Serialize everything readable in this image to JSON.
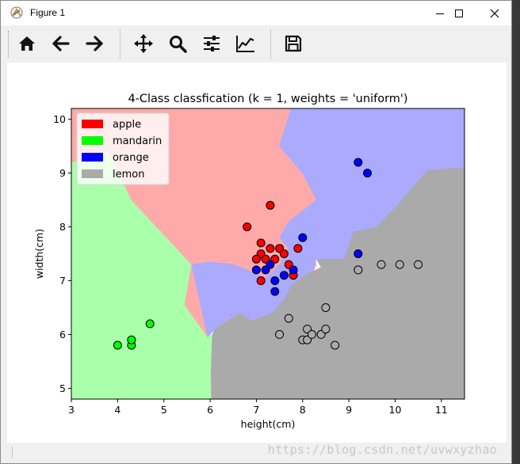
{
  "window": {
    "title": "Figure 1",
    "controls": {
      "minimize": "minimize",
      "maximize": "maximize",
      "close": "close"
    }
  },
  "toolbar": {
    "items": [
      {
        "name": "home-icon"
      },
      {
        "name": "back-arrow-icon"
      },
      {
        "name": "forward-arrow-icon"
      },
      {
        "name": "pan-icon"
      },
      {
        "name": "zoom-icon"
      },
      {
        "name": "configure-subplots-icon"
      },
      {
        "name": "edit-axes-icon"
      },
      {
        "name": "save-icon"
      }
    ]
  },
  "status": {
    "watermark": "https://blog.csdn.net/uvwxyzhao"
  },
  "chart_data": {
    "type": "scatter",
    "title": "4-Class classfication (k = 1, weights = 'uniform')",
    "xlabel": "height(cm)",
    "ylabel": "width(cm)",
    "xlim": [
      3,
      11.5
    ],
    "ylim": [
      4.8,
      10.2
    ],
    "xticks": [
      3,
      4,
      5,
      6,
      7,
      8,
      9,
      10,
      11
    ],
    "yticks": [
      5,
      6,
      7,
      8,
      9,
      10
    ],
    "legend_position": "upper-left",
    "series": [
      {
        "name": "apple",
        "color": "#ff0000",
        "points": [
          [
            6.8,
            8.0
          ],
          [
            7.1,
            7.7
          ],
          [
            7.3,
            8.4
          ],
          [
            7.1,
            7.5
          ],
          [
            7.0,
            7.4
          ],
          [
            7.2,
            7.4
          ],
          [
            7.3,
            7.6
          ],
          [
            7.4,
            7.4
          ],
          [
            7.5,
            7.6
          ],
          [
            7.6,
            7.5
          ],
          [
            7.7,
            7.3
          ],
          [
            7.9,
            7.6
          ],
          [
            7.1,
            7.0
          ],
          [
            7.8,
            7.1
          ]
        ]
      },
      {
        "name": "mandarin",
        "color": "#00ff00",
        "points": [
          [
            4.0,
            5.8
          ],
          [
            4.3,
            5.8
          ],
          [
            4.3,
            5.9
          ],
          [
            4.7,
            6.2
          ]
        ]
      },
      {
        "name": "orange",
        "color": "#0000ff",
        "points": [
          [
            9.2,
            9.2
          ],
          [
            9.4,
            9.0
          ],
          [
            8.0,
            7.8
          ],
          [
            9.2,
            7.5
          ],
          [
            7.0,
            7.2
          ],
          [
            7.2,
            7.2
          ],
          [
            7.3,
            7.3
          ],
          [
            7.4,
            7.0
          ],
          [
            7.6,
            7.1
          ],
          [
            7.4,
            6.8
          ],
          [
            7.8,
            7.2
          ]
        ]
      },
      {
        "name": "lemon",
        "color": "#aaaaaa",
        "points": [
          [
            9.7,
            7.3
          ],
          [
            10.1,
            7.3
          ],
          [
            10.5,
            7.3
          ],
          [
            9.2,
            7.2
          ],
          [
            8.5,
            6.5
          ],
          [
            7.7,
            6.3
          ],
          [
            8.1,
            6.1
          ],
          [
            7.5,
            6.0
          ],
          [
            8.0,
            5.9
          ],
          [
            8.1,
            5.9
          ],
          [
            8.2,
            6.0
          ],
          [
            8.4,
            6.0
          ],
          [
            8.5,
            6.1
          ],
          [
            8.7,
            5.8
          ]
        ]
      }
    ],
    "regions": [
      {
        "class": "mandarin",
        "color": "#aaffaa",
        "polygon": [
          [
            3,
            4.8
          ],
          [
            6.03,
            4.8
          ],
          [
            6.02,
            5.3
          ],
          [
            6.05,
            6.0
          ],
          [
            5.95,
            5.95
          ],
          [
            5.45,
            6.55
          ],
          [
            5.55,
            7.05
          ],
          [
            5.6,
            7.3
          ],
          [
            4.3,
            8.5
          ],
          [
            3.8,
            9.4
          ],
          [
            3,
            9.2
          ]
        ]
      },
      {
        "class": "apple",
        "color": "#ffaaaa",
        "polygon": [
          [
            3,
            10.2
          ],
          [
            7.75,
            10.2
          ],
          [
            7.5,
            9.5
          ],
          [
            8.0,
            9.0
          ],
          [
            8.3,
            8.5
          ],
          [
            7.7,
            8.1
          ],
          [
            7.5,
            7.8
          ],
          [
            7.7,
            7.6
          ],
          [
            8.2,
            7.5
          ],
          [
            8.3,
            7.3
          ],
          [
            8.2,
            7.1
          ],
          [
            7.85,
            6.85
          ],
          [
            7.6,
            6.65
          ],
          [
            7.0,
            6.9
          ],
          [
            6.65,
            6.4
          ],
          [
            6.1,
            6.1
          ],
          [
            5.95,
            5.95
          ],
          [
            5.45,
            6.55
          ],
          [
            5.55,
            7.05
          ],
          [
            5.6,
            7.3
          ],
          [
            4.3,
            8.5
          ],
          [
            3.8,
            9.4
          ],
          [
            3,
            9.2
          ]
        ]
      },
      {
        "class": "orange",
        "color": "#aaaaff",
        "polygon": [
          [
            7.75,
            10.2
          ],
          [
            11.5,
            10.2
          ],
          [
            11.5,
            9.1
          ],
          [
            10.7,
            9.05
          ],
          [
            10.0,
            8.35
          ],
          [
            9.6,
            8.0
          ],
          [
            9.1,
            7.9
          ],
          [
            8.9,
            7.4
          ],
          [
            8.3,
            7.4
          ],
          [
            8.2,
            7.1
          ],
          [
            7.85,
            6.85
          ],
          [
            7.6,
            6.65
          ],
          [
            7.35,
            6.4
          ],
          [
            6.9,
            6.25
          ],
          [
            6.65,
            6.4
          ],
          [
            6.1,
            6.1
          ],
          [
            5.95,
            5.95
          ],
          [
            5.6,
            7.3
          ],
          [
            6.0,
            7.35
          ],
          [
            6.5,
            7.3
          ],
          [
            6.8,
            7.2
          ],
          [
            7.2,
            7.05
          ],
          [
            7.5,
            7.3
          ],
          [
            7.7,
            7.6
          ],
          [
            7.5,
            7.8
          ],
          [
            7.7,
            8.1
          ],
          [
            8.3,
            8.5
          ],
          [
            8.0,
            9.0
          ],
          [
            7.5,
            9.5
          ]
        ]
      },
      {
        "class": "lemon",
        "color": "#aaaaaa",
        "polygon": [
          [
            6.03,
            4.8
          ],
          [
            11.5,
            4.8
          ],
          [
            11.5,
            9.1
          ],
          [
            10.7,
            9.05
          ],
          [
            10.0,
            8.35
          ],
          [
            9.6,
            8.0
          ],
          [
            9.1,
            7.9
          ],
          [
            8.9,
            7.4
          ],
          [
            8.3,
            7.4
          ],
          [
            8.4,
            7.25
          ],
          [
            8.05,
            7.1
          ],
          [
            7.75,
            6.9
          ],
          [
            7.6,
            6.65
          ],
          [
            7.35,
            6.4
          ],
          [
            6.9,
            6.25
          ],
          [
            6.65,
            6.4
          ],
          [
            6.1,
            6.1
          ],
          [
            6.05,
            6.0
          ],
          [
            6.02,
            5.3
          ]
        ]
      }
    ]
  }
}
